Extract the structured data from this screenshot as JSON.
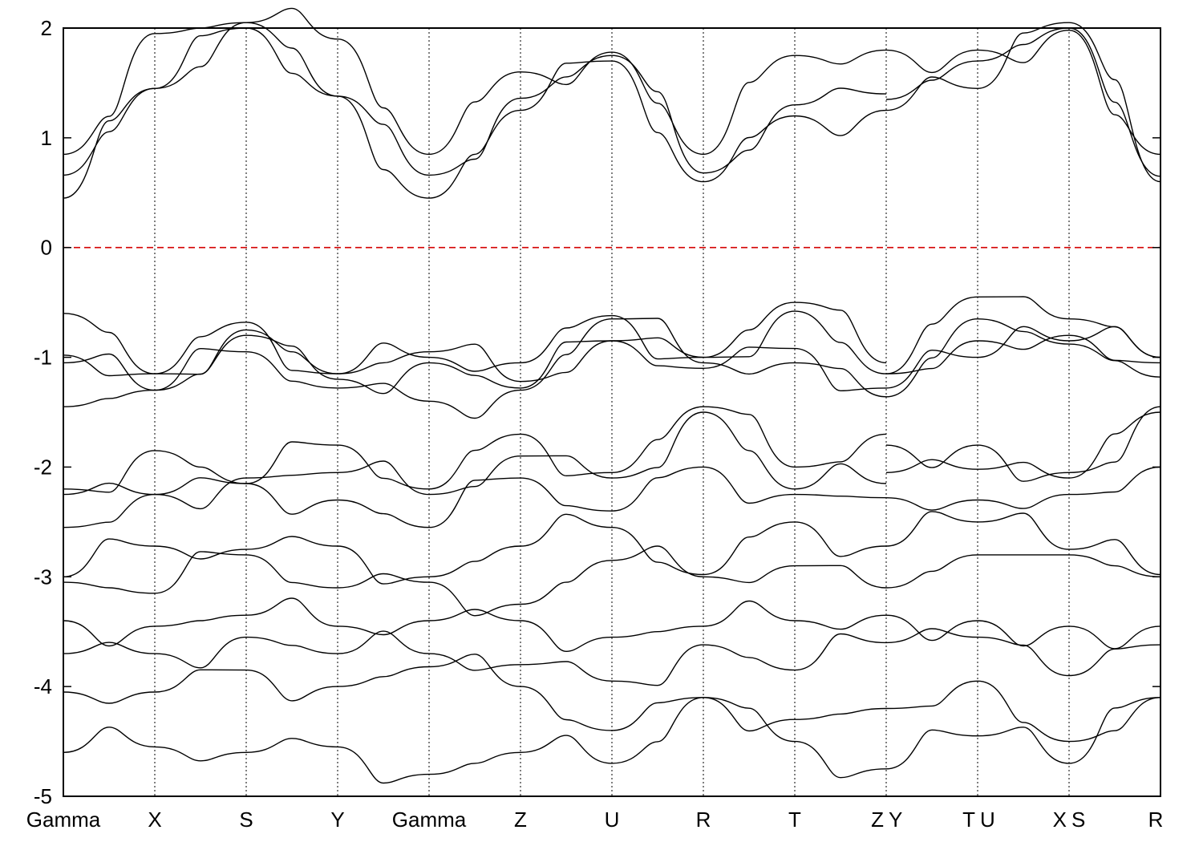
{
  "chart_data": {
    "type": "line",
    "title": "",
    "xlabel": "",
    "ylabel": "",
    "ylim": [
      -5,
      2
    ],
    "yticks": [
      -5,
      -4,
      -3,
      -2,
      -1,
      0,
      1,
      2
    ],
    "grid": "vertical dotted lines at high-symmetry points",
    "fermi_level": {
      "value": 0,
      "color": "#d40000",
      "style": "dashed"
    },
    "kpath": [
      {
        "label": "Gamma",
        "x": 0.0
      },
      {
        "label": "X",
        "x": 1.0
      },
      {
        "label": "S",
        "x": 2.0
      },
      {
        "label": "Y",
        "x": 3.0
      },
      {
        "label": "Gamma",
        "x": 4.0
      },
      {
        "label": "Z",
        "x": 5.0
      },
      {
        "label": "U",
        "x": 6.0
      },
      {
        "label": "R",
        "x": 7.0
      },
      {
        "label": "T",
        "x": 8.0
      },
      {
        "label": "Z",
        "x": 9.0
      },
      {
        "label": "Y",
        "x": 9.0
      },
      {
        "label": "T",
        "x": 10.0
      },
      {
        "label": "U",
        "x": 10.0
      },
      {
        "label": "X",
        "x": 11.0
      },
      {
        "label": "S",
        "x": 11.0
      },
      {
        "label": "R",
        "x": 12.0
      }
    ],
    "path_breaks": [
      9.0,
      10.0,
      11.0
    ],
    "segments": [
      {
        "from": "Gamma",
        "to": "X",
        "x0": 0,
        "x1": 1
      },
      {
        "from": "X",
        "to": "S",
        "x0": 1,
        "x1": 2
      },
      {
        "from": "S",
        "to": "Y",
        "x0": 2,
        "x1": 3
      },
      {
        "from": "Y",
        "to": "Gamma",
        "x0": 3,
        "x1": 4
      },
      {
        "from": "Gamma",
        "to": "Z",
        "x0": 4,
        "x1": 5
      },
      {
        "from": "Z",
        "to": "U",
        "x0": 5,
        "x1": 6
      },
      {
        "from": "U",
        "to": "R",
        "x0": 6,
        "x1": 7
      },
      {
        "from": "R",
        "to": "T",
        "x0": 7,
        "x1": 8
      },
      {
        "from": "T",
        "to": "Z",
        "x0": 8,
        "x1": 9
      },
      {
        "from": "Y",
        "to": "T",
        "x0": 9,
        "x1": 10
      },
      {
        "from": "U",
        "to": "X",
        "x0": 10,
        "x1": 11
      },
      {
        "from": "S",
        "to": "R",
        "x0": 11,
        "x1": 12
      }
    ],
    "series": [
      {
        "values": [
          0.45,
          1.45,
          2.05,
          1.38,
          0.45,
          1.25,
          1.7,
          0.6,
          1.2,
          1.25,
          1.25,
          1.45,
          2.05,
          0.6
        ]
      },
      {
        "values": [
          0.66,
          1.45,
          2.0,
          1.38,
          0.66,
          1.36,
          1.75,
          0.68,
          1.3,
          1.4,
          1.35,
          1.7,
          2.0,
          0.65
        ]
      },
      {
        "values": [
          0.85,
          1.95,
          2.05,
          1.9,
          0.85,
          1.6,
          1.78,
          0.85,
          1.75,
          1.8,
          1.8,
          1.8,
          1.98,
          0.85
        ]
      },
      {
        "values": [
          -0.6,
          -1.15,
          -0.75,
          -1.15,
          -1.0,
          -1.05,
          -0.62,
          -1.0,
          -0.5,
          -1.05,
          -1.15,
          -0.45,
          -0.65,
          -1.0
        ]
      },
      {
        "values": [
          -0.98,
          -1.15,
          -0.68,
          -1.15,
          -0.95,
          -1.22,
          -0.85,
          -1.0,
          -0.58,
          -1.15,
          -1.15,
          -0.85,
          -0.8,
          -1.05
        ]
      },
      {
        "values": [
          -1.05,
          -1.3,
          -0.8,
          -1.2,
          -1.05,
          -1.28,
          -0.85,
          -1.1,
          -0.92,
          -1.28,
          -1.28,
          -1.0,
          -0.85,
          -1.0
        ]
      },
      {
        "values": [
          -1.45,
          -1.3,
          -0.95,
          -1.28,
          -1.4,
          -1.3,
          -0.65,
          -1.05,
          -1.05,
          -1.36,
          -1.36,
          -0.65,
          -0.88,
          -1.18
        ]
      },
      {
        "values": [
          -2.2,
          -1.85,
          -2.15,
          -1.8,
          -2.2,
          -1.7,
          -2.05,
          -1.45,
          -2.0,
          -1.7,
          -1.8,
          -1.8,
          -2.05,
          -1.45
        ]
      },
      {
        "values": [
          -2.25,
          -2.25,
          -2.1,
          -2.05,
          -2.25,
          -1.9,
          -2.1,
          -1.5,
          -2.2,
          -2.15,
          -2.05,
          -2.02,
          -2.1,
          -1.5
        ]
      },
      {
        "values": [
          -2.55,
          -2.25,
          -2.15,
          -2.3,
          -2.55,
          -2.1,
          -2.4,
          -2.0,
          -2.25,
          -2.28,
          -2.28,
          -2.3,
          -2.25,
          -2.0
        ]
      },
      {
        "values": [
          -3.0,
          -2.72,
          -2.75,
          -2.72,
          -3.0,
          -2.72,
          -2.55,
          -2.98,
          -2.5,
          -2.72,
          -2.72,
          -2.5,
          -2.75,
          -2.98
        ]
      },
      {
        "values": [
          -3.05,
          -3.15,
          -2.8,
          -3.1,
          -3.05,
          -3.25,
          -2.85,
          -3.0,
          -2.9,
          -3.1,
          -3.1,
          -2.8,
          -2.8,
          -3.0
        ]
      },
      {
        "values": [
          -3.4,
          -3.45,
          -3.35,
          -3.45,
          -3.4,
          -3.4,
          -3.55,
          -3.45,
          -3.4,
          -3.35,
          -3.35,
          -3.4,
          -3.45,
          -3.45
        ]
      },
      {
        "values": [
          -3.7,
          -3.7,
          -3.55,
          -3.7,
          -3.7,
          -3.8,
          -3.95,
          -3.62,
          -3.85,
          -3.6,
          -3.6,
          -3.55,
          -3.9,
          -3.62
        ]
      },
      {
        "values": [
          -4.05,
          -4.05,
          -3.85,
          -4.0,
          -3.82,
          -4.0,
          -4.4,
          -4.1,
          -4.3,
          -4.2,
          -4.2,
          -3.95,
          -4.5,
          -4.1
        ]
      },
      {
        "values": [
          -4.6,
          -4.55,
          -4.6,
          -4.55,
          -4.8,
          -4.6,
          -4.7,
          -4.1,
          -4.5,
          -4.75,
          -4.75,
          -4.45,
          -4.7,
          -4.1
        ]
      }
    ]
  }
}
